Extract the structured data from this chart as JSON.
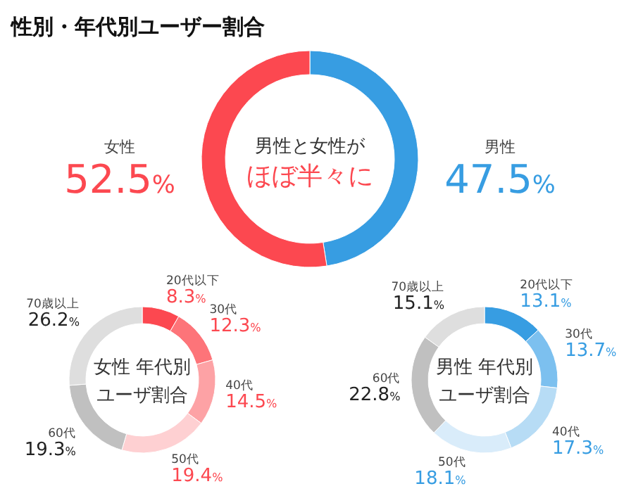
{
  "chart_data": [
    {
      "type": "donut",
      "title": "性別・年代別ユーザー割合",
      "annotations": [
        "男性と女性が",
        "ほぼ半々に"
      ],
      "categories": [
        "男性",
        "女性"
      ],
      "values": [
        47.5,
        52.5
      ],
      "value_labels": [
        "47.5%",
        "52.5%"
      ],
      "colors": [
        "#379de2",
        "#fc4850"
      ]
    },
    {
      "type": "donut",
      "annotations": [
        "女性 年代別",
        "ユーザ割合"
      ],
      "categories": [
        "20代以下",
        "30代",
        "40代",
        "50代",
        "60代",
        "70歳以上"
      ],
      "values": [
        8.3,
        12.3,
        14.5,
        19.4,
        19.3,
        26.2
      ],
      "value_labels": [
        "8.3%",
        "12.3%",
        "14.5%",
        "19.4%",
        "19.3%",
        "26.2%"
      ],
      "colors": [
        "#fc4850",
        "#fd7479",
        "#fda2a5",
        "#fed0d2",
        "#c0c0c0",
        "#dedede"
      ]
    },
    {
      "type": "donut",
      "annotations": [
        "男性 年代別",
        "ユーザ割合"
      ],
      "categories": [
        "20代以下",
        "30代",
        "40代",
        "50代",
        "60代",
        "70歳以上"
      ],
      "values": [
        13.1,
        13.7,
        17.3,
        18.1,
        22.8,
        15.1
      ],
      "value_labels": [
        "13.1%",
        "13.7%",
        "17.3%",
        "18.1%",
        "22.8%",
        "15.1%"
      ],
      "colors": [
        "#379de2",
        "#7cc0ef",
        "#b7dcf5",
        "#d9ecfa",
        "#c0c0c0",
        "#dedede"
      ]
    }
  ]
}
